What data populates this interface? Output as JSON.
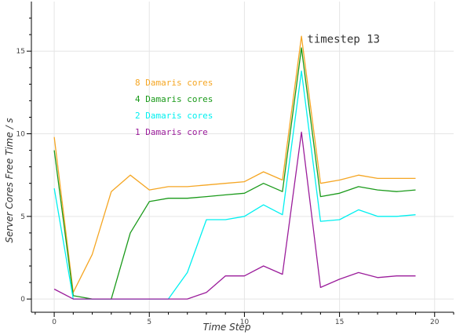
{
  "chart_data": {
    "type": "line",
    "title": "",
    "xlabel": "Time Step",
    "ylabel": "Server Cores Free Time / s",
    "xlim": [
      -1.2,
      21
    ],
    "ylim": [
      -0.8,
      18
    ],
    "xticks": [
      0,
      5,
      10,
      15,
      20
    ],
    "yticks": [
      0,
      5,
      10,
      15
    ],
    "xtick_labels": [
      "0",
      "5",
      "10",
      "15",
      "20"
    ],
    "ytick_labels": [
      "0",
      "5",
      "10",
      "15"
    ],
    "grid": true,
    "legend_position": "upper-middle",
    "annotation": {
      "text": "timestep 13",
      "x": 13.3,
      "y": 15.5
    },
    "x": [
      0,
      1,
      2,
      3,
      4,
      5,
      6,
      7,
      8,
      9,
      10,
      11,
      12,
      13,
      14,
      15,
      16,
      17,
      18,
      19
    ],
    "series": [
      {
        "name": "8 Damaris cores",
        "color": "#f5a623",
        "values": [
          9.8,
          0.4,
          2.7,
          6.5,
          7.5,
          6.6,
          6.8,
          6.8,
          6.9,
          7.0,
          7.1,
          7.7,
          7.2,
          15.9,
          7.0,
          7.2,
          7.5,
          7.3,
          7.3,
          7.3
        ]
      },
      {
        "name": "4 Damaris cores",
        "color": "#1a9a1a",
        "values": [
          9.0,
          0.2,
          0.0,
          0.0,
          4.0,
          5.9,
          6.1,
          6.1,
          6.2,
          6.3,
          6.4,
          7.0,
          6.5,
          15.2,
          6.2,
          6.4,
          6.8,
          6.6,
          6.5,
          6.6
        ]
      },
      {
        "name": "2 Damaris cores",
        "color": "#00f0f0",
        "values": [
          6.7,
          0.0,
          0.0,
          0.0,
          0.0,
          0.0,
          0.0,
          1.6,
          4.8,
          4.8,
          5.0,
          5.7,
          5.1,
          13.8,
          4.7,
          4.8,
          5.4,
          5.0,
          5.0,
          5.1
        ]
      },
      {
        "name": "1 Damaris core",
        "color": "#9b1d9b",
        "values": [
          0.6,
          0.0,
          0.0,
          0.0,
          0.0,
          0.0,
          0.0,
          0.0,
          0.4,
          1.4,
          1.4,
          2.0,
          1.5,
          10.1,
          0.7,
          1.2,
          1.6,
          1.3,
          1.4,
          1.4
        ]
      }
    ]
  }
}
